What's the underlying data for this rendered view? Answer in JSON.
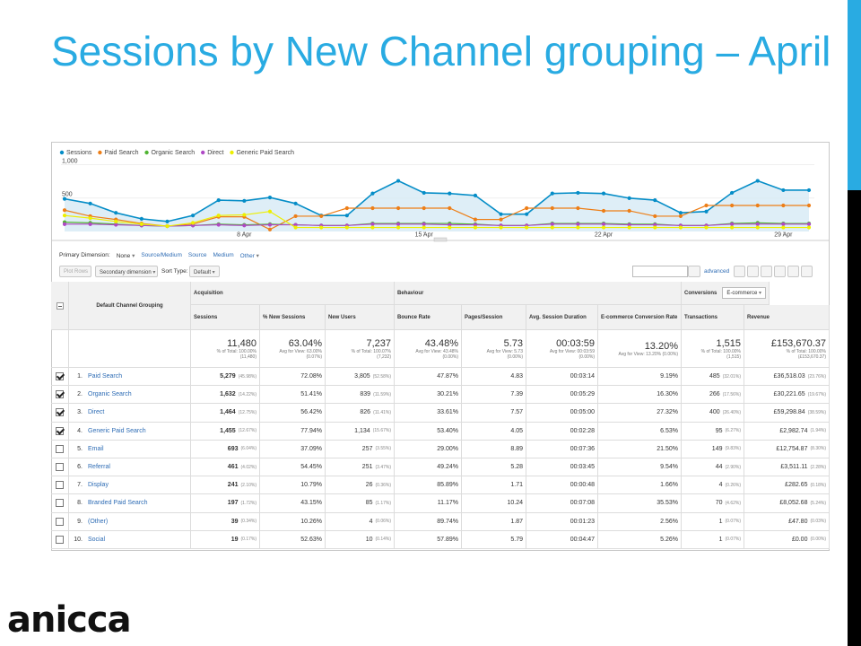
{
  "slide": {
    "title": "Sessions by New Channel grouping – April",
    "logo": "anicca"
  },
  "chart_data": {
    "type": "line",
    "categories": [
      null,
      null,
      null,
      null,
      null,
      null,
      null,
      "8 Apr",
      null,
      null,
      null,
      null,
      null,
      null,
      "15 Apr",
      null,
      null,
      null,
      null,
      null,
      null,
      "22 Apr",
      null,
      null,
      null,
      null,
      null,
      null,
      "29 Apr",
      null
    ],
    "series": [
      {
        "name": "Sessions",
        "color": "#058dc7",
        "values": [
          490,
          420,
          280,
          190,
          150,
          240,
          470,
          460,
          510,
          420,
          240,
          240,
          570,
          760,
          580,
          570,
          540,
          260,
          260,
          570,
          580,
          570,
          500,
          470,
          280,
          300,
          580,
          760,
          620,
          620
        ]
      },
      {
        "name": "Paid Search",
        "color": "#ed7e17",
        "values": [
          320,
          230,
          180,
          120,
          80,
          110,
          220,
          220,
          30,
          230,
          230,
          350,
          350,
          350,
          350,
          350,
          180,
          180,
          350,
          350,
          350,
          310,
          310,
          230,
          230,
          390,
          390,
          390,
          390,
          390
        ]
      },
      {
        "name": "Organic Search",
        "color": "#50b432",
        "values": [
          140,
          130,
          110,
          90,
          80,
          90,
          110,
          100,
          110,
          100,
          90,
          90,
          120,
          120,
          120,
          120,
          110,
          90,
          90,
          120,
          120,
          120,
          110,
          110,
          90,
          90,
          120,
          130,
          120,
          120
        ]
      },
      {
        "name": "Direct",
        "color": "#af49c5",
        "values": [
          110,
          110,
          100,
          90,
          80,
          90,
          100,
          90,
          100,
          100,
          90,
          90,
          110,
          110,
          110,
          100,
          100,
          90,
          90,
          110,
          110,
          110,
          100,
          100,
          90,
          90,
          110,
          110,
          110,
          110
        ]
      },
      {
        "name": "Generic Paid Search",
        "color": "#edef00",
        "values": [
          240,
          200,
          150,
          110,
          80,
          130,
          240,
          250,
          300,
          60,
          60,
          60,
          60,
          60,
          60,
          60,
          60,
          60,
          60,
          60,
          60,
          60,
          60,
          60,
          60,
          60,
          60,
          60,
          60,
          60
        ]
      }
    ],
    "ylim": [
      0,
      1050
    ],
    "yticks": [
      500,
      {
        "value": 1000,
        "label": "1,000"
      }
    ],
    "grid": true
  },
  "toolbar": {
    "primary_label": "Primary Dimension:",
    "primary": "None",
    "options": [
      "Source/Medium",
      "Source",
      "Medium",
      "Other"
    ],
    "plot_rows": "Plot Rows",
    "secondary": "Secondary dimension",
    "sort_label": "Sort Type:",
    "sort": "Default",
    "advanced": "advanced"
  },
  "table": {
    "dimension": "Default Channel Grouping",
    "groups": [
      "Acquisition",
      "Behaviour",
      "Conversions"
    ],
    "conversion_select": "E-commerce",
    "columns": [
      "Sessions",
      "% New Sessions",
      "New Users",
      "Bounce Rate",
      "Pages/Session",
      "Avg. Session Duration",
      "E-commerce Conversion Rate",
      "Transactions",
      "Revenue"
    ],
    "totals": [
      [
        "11,480",
        "% of Total: 100.00%",
        "(11,480)"
      ],
      [
        "63.04%",
        "Avg for View: 63.00%",
        "(0.07%)"
      ],
      [
        "7,237",
        "% of Total: 100.07%",
        "(7,232)"
      ],
      [
        "43.48%",
        "Avg for View: 43.48%",
        "(0.00%)"
      ],
      [
        "5.73",
        "Avg for View: 5.73",
        "(0.00%)"
      ],
      [
        "00:03:59",
        "Avg for View: 00:03:59",
        "(0.00%)"
      ],
      [
        "13.20%",
        "Avg for View: 13.20% (0.00%)"
      ],
      [
        "1,515",
        "% of Total: 100.00%",
        "(1,515)"
      ],
      [
        "£153,670.37",
        "% of Total: 100.00%",
        "(£153,670.37)"
      ]
    ],
    "rows": [
      {
        "checked": true,
        "index": "1.",
        "name": "Paid Search",
        "cells": [
          [
            "5,279",
            "(45.98%)"
          ],
          "72.08%",
          [
            "3,805",
            "(52.58%)"
          ],
          "47.87%",
          "4.83",
          "00:03:14",
          "9.19%",
          [
            "485",
            "(32.01%)"
          ],
          [
            "£36,518.03",
            "(23.76%)"
          ]
        ]
      },
      {
        "checked": true,
        "index": "2.",
        "name": "Organic Search",
        "cells": [
          [
            "1,632",
            "(14.22%)"
          ],
          "51.41%",
          [
            "839",
            "(11.59%)"
          ],
          "30.21%",
          "7.39",
          "00:05:29",
          "16.30%",
          [
            "266",
            "(17.56%)"
          ],
          [
            "£30,221.65",
            "(19.67%)"
          ]
        ]
      },
      {
        "checked": true,
        "index": "3.",
        "name": "Direct",
        "cells": [
          [
            "1,464",
            "(12.75%)"
          ],
          "56.42%",
          [
            "826",
            "(11.41%)"
          ],
          "33.61%",
          "7.57",
          "00:05:00",
          "27.32%",
          [
            "400",
            "(26.40%)"
          ],
          [
            "£59,298.84",
            "(38.59%)"
          ]
        ]
      },
      {
        "checked": true,
        "index": "4.",
        "name": "Generic Paid Search",
        "cells": [
          [
            "1,455",
            "(12.67%)"
          ],
          "77.94%",
          [
            "1,134",
            "(15.67%)"
          ],
          "53.40%",
          "4.05",
          "00:02:28",
          "6.53%",
          [
            "95",
            "(6.27%)"
          ],
          [
            "£2,982.74",
            "(1.94%)"
          ]
        ]
      },
      {
        "checked": false,
        "index": "5.",
        "name": "Email",
        "cells": [
          [
            "693",
            "(6.04%)"
          ],
          "37.09%",
          [
            "257",
            "(3.55%)"
          ],
          "29.00%",
          "8.89",
          "00:07:36",
          "21.50%",
          [
            "149",
            "(9.83%)"
          ],
          [
            "£12,754.87",
            "(8.30%)"
          ]
        ]
      },
      {
        "checked": false,
        "index": "6.",
        "name": "Referral",
        "cells": [
          [
            "461",
            "(4.02%)"
          ],
          "54.45%",
          [
            "251",
            "(3.47%)"
          ],
          "49.24%",
          "5.28",
          "00:03:45",
          "9.54%",
          [
            "44",
            "(2.90%)"
          ],
          [
            "£3,511.11",
            "(2.28%)"
          ]
        ]
      },
      {
        "checked": false,
        "index": "7.",
        "name": "Display",
        "cells": [
          [
            "241",
            "(2.10%)"
          ],
          "10.79%",
          [
            "26",
            "(0.36%)"
          ],
          "85.89%",
          "1.71",
          "00:00:48",
          "1.66%",
          [
            "4",
            "(0.26%)"
          ],
          [
            "£282.65",
            "(0.18%)"
          ]
        ]
      },
      {
        "checked": false,
        "index": "8.",
        "name": "Branded Paid Search",
        "cells": [
          [
            "197",
            "(1.72%)"
          ],
          "43.15%",
          [
            "85",
            "(1.17%)"
          ],
          "11.17%",
          "10.24",
          "00:07:08",
          "35.53%",
          [
            "70",
            "(4.62%)"
          ],
          [
            "£8,052.68",
            "(5.24%)"
          ]
        ]
      },
      {
        "checked": false,
        "index": "9.",
        "name": "(Other)",
        "cells": [
          [
            "39",
            "(0.34%)"
          ],
          "10.26%",
          [
            "4",
            "(0.06%)"
          ],
          "89.74%",
          "1.87",
          "00:01:23",
          "2.56%",
          [
            "1",
            "(0.07%)"
          ],
          [
            "£47.80",
            "(0.03%)"
          ]
        ]
      },
      {
        "checked": false,
        "index": "10.",
        "name": "Social",
        "cells": [
          [
            "19",
            "(0.17%)"
          ],
          "52.63%",
          [
            "10",
            "(0.14%)"
          ],
          "57.89%",
          "5.79",
          "00:04:47",
          "5.26%",
          [
            "1",
            "(0.07%)"
          ],
          [
            "£0.00",
            "(0.00%)"
          ]
        ]
      }
    ]
  }
}
